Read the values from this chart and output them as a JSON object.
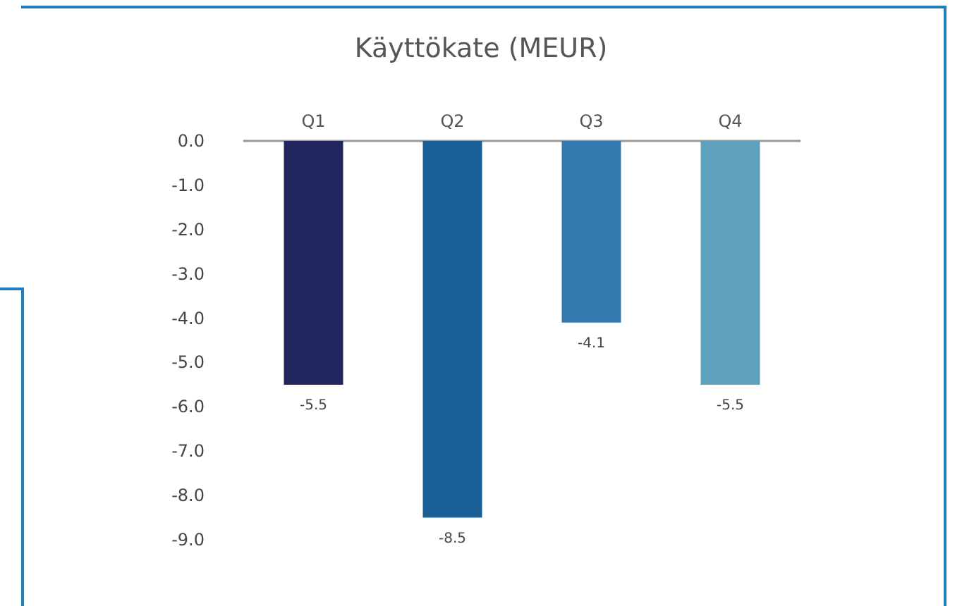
{
  "chart_data": {
    "type": "bar",
    "title": "Käyttökate (MEUR)",
    "categories": [
      "Q1",
      "Q2",
      "Q3",
      "Q4"
    ],
    "values": [
      -5.5,
      -8.5,
      -4.1,
      -5.5
    ],
    "colors": [
      "#22265e",
      "#1a6096",
      "#3479ad",
      "#5ea1bd"
    ],
    "value_labels": [
      "-5.5",
      "-8.5",
      "-4.1",
      "-5.5"
    ],
    "ylim": [
      -9,
      0
    ],
    "yticks": [
      {
        "value": 0,
        "label": "0.0"
      },
      {
        "value": -1,
        "label": "-1.0"
      },
      {
        "value": -2,
        "label": "-2.0"
      },
      {
        "value": -3,
        "label": "-3.0"
      },
      {
        "value": -4,
        "label": "-4.0"
      },
      {
        "value": -5,
        "label": "-5.0"
      },
      {
        "value": -6,
        "label": "-6.0"
      },
      {
        "value": -7,
        "label": "-7.0"
      },
      {
        "value": -8,
        "label": "-8.0"
      },
      {
        "value": -9,
        "label": "-9.0"
      }
    ],
    "grid": false
  }
}
